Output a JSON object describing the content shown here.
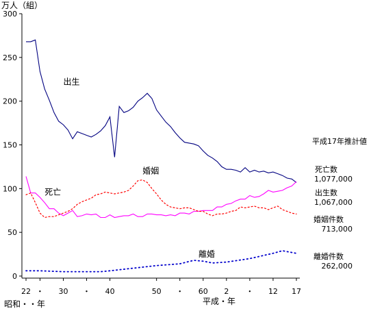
{
  "chart_data": {
    "type": "line",
    "unit_label": "万人（組）",
    "era_label": "昭和・・年",
    "heisei_label": "平成・年",
    "yticks": [
      0,
      50,
      100,
      150,
      200,
      250,
      300
    ],
    "ylim": [
      0,
      300
    ],
    "xlim": [
      1947,
      2005
    ],
    "xticks": [
      {
        "year": 1947,
        "label": "22"
      },
      {
        "year": 1950,
        "label": "・"
      },
      {
        "year": 1955,
        "label": "30"
      },
      {
        "year": 1960,
        "label": "・"
      },
      {
        "year": 1965,
        "label": "40"
      },
      {
        "year": 1975,
        "label": "50"
      },
      {
        "year": 1980,
        "label": "・"
      },
      {
        "year": 1985,
        "label": "60"
      },
      {
        "year": 1990,
        "label": "2"
      },
      {
        "year": 1995,
        "label": "・"
      },
      {
        "year": 2000,
        "label": "12"
      },
      {
        "year": 2005,
        "label": "17"
      }
    ],
    "series": [
      {
        "name": "出生",
        "color": "#000080",
        "style": "solid",
        "points": [
          [
            1947,
            268
          ],
          [
            1948,
            268
          ],
          [
            1949,
            270
          ],
          [
            1950,
            234
          ],
          [
            1951,
            214
          ],
          [
            1952,
            201
          ],
          [
            1953,
            187
          ],
          [
            1954,
            177
          ],
          [
            1955,
            173
          ],
          [
            1956,
            167
          ],
          [
            1957,
            157
          ],
          [
            1958,
            165
          ],
          [
            1959,
            163
          ],
          [
            1960,
            161
          ],
          [
            1961,
            159
          ],
          [
            1962,
            162
          ],
          [
            1963,
            166
          ],
          [
            1964,
            172
          ],
          [
            1965,
            182
          ],
          [
            1966,
            136
          ],
          [
            1967,
            194
          ],
          [
            1968,
            187
          ],
          [
            1969,
            189
          ],
          [
            1970,
            193
          ],
          [
            1971,
            200
          ],
          [
            1972,
            204
          ],
          [
            1973,
            209
          ],
          [
            1974,
            203
          ],
          [
            1975,
            190
          ],
          [
            1976,
            183
          ],
          [
            1977,
            176
          ],
          [
            1978,
            171
          ],
          [
            1979,
            164
          ],
          [
            1980,
            158
          ],
          [
            1981,
            153
          ],
          [
            1982,
            152
          ],
          [
            1983,
            151
          ],
          [
            1984,
            149
          ],
          [
            1985,
            143
          ],
          [
            1986,
            138
          ],
          [
            1987,
            135
          ],
          [
            1988,
            131
          ],
          [
            1989,
            125
          ],
          [
            1990,
            122
          ],
          [
            1991,
            122
          ],
          [
            1992,
            121
          ],
          [
            1993,
            119
          ],
          [
            1994,
            124
          ],
          [
            1995,
            119
          ],
          [
            1996,
            121
          ],
          [
            1997,
            119
          ],
          [
            1998,
            120
          ],
          [
            1999,
            118
          ],
          [
            2000,
            119
          ],
          [
            2001,
            117
          ],
          [
            2002,
            115
          ],
          [
            2003,
            112
          ],
          [
            2004,
            111
          ],
          [
            2005,
            107
          ]
        ]
      },
      {
        "name": "死亡",
        "color": "#ff00ff",
        "style": "solid",
        "points": [
          [
            1947,
            114
          ],
          [
            1948,
            95
          ],
          [
            1949,
            95
          ],
          [
            1950,
            90
          ],
          [
            1951,
            84
          ],
          [
            1952,
            77
          ],
          [
            1953,
            77
          ],
          [
            1954,
            72
          ],
          [
            1955,
            69
          ],
          [
            1956,
            72
          ],
          [
            1957,
            75
          ],
          [
            1958,
            68
          ],
          [
            1959,
            69
          ],
          [
            1960,
            71
          ],
          [
            1961,
            70
          ],
          [
            1962,
            71
          ],
          [
            1963,
            67
          ],
          [
            1964,
            67
          ],
          [
            1965,
            70
          ],
          [
            1966,
            67
          ],
          [
            1967,
            68
          ],
          [
            1968,
            69
          ],
          [
            1969,
            69
          ],
          [
            1970,
            71
          ],
          [
            1971,
            68
          ],
          [
            1972,
            68
          ],
          [
            1973,
            71
          ],
          [
            1974,
            71
          ],
          [
            1975,
            70
          ],
          [
            1976,
            70
          ],
          [
            1977,
            69
          ],
          [
            1978,
            70
          ],
          [
            1979,
            69
          ],
          [
            1980,
            72
          ],
          [
            1981,
            72
          ],
          [
            1982,
            71
          ],
          [
            1983,
            74
          ],
          [
            1984,
            74
          ],
          [
            1985,
            75
          ],
          [
            1986,
            75
          ],
          [
            1987,
            75
          ],
          [
            1988,
            79
          ],
          [
            1989,
            79
          ],
          [
            1990,
            82
          ],
          [
            1991,
            83
          ],
          [
            1992,
            86
          ],
          [
            1993,
            88
          ],
          [
            1994,
            88
          ],
          [
            1995,
            92
          ],
          [
            1996,
            90
          ],
          [
            1997,
            91
          ],
          [
            1998,
            94
          ],
          [
            1999,
            98
          ],
          [
            2000,
            96
          ],
          [
            2001,
            97
          ],
          [
            2002,
            98
          ],
          [
            2003,
            101
          ],
          [
            2004,
            103
          ],
          [
            2005,
            108
          ]
        ]
      },
      {
        "name": "婚姻",
        "color": "#ff0000",
        "style": "dotted",
        "points": [
          [
            1947,
            93
          ],
          [
            1948,
            95
          ],
          [
            1949,
            84
          ],
          [
            1950,
            72
          ],
          [
            1951,
            67
          ],
          [
            1952,
            68
          ],
          [
            1953,
            68
          ],
          [
            1954,
            70
          ],
          [
            1955,
            72
          ],
          [
            1956,
            74
          ],
          [
            1957,
            77
          ],
          [
            1958,
            82
          ],
          [
            1959,
            85
          ],
          [
            1960,
            87
          ],
          [
            1961,
            89
          ],
          [
            1962,
            93
          ],
          [
            1963,
            94
          ],
          [
            1964,
            96
          ],
          [
            1965,
            95
          ],
          [
            1966,
            94
          ],
          [
            1967,
            95
          ],
          [
            1968,
            96
          ],
          [
            1969,
            98
          ],
          [
            1970,
            103
          ],
          [
            1971,
            109
          ],
          [
            1972,
            110
          ],
          [
            1973,
            107
          ],
          [
            1974,
            100
          ],
          [
            1975,
            94
          ],
          [
            1976,
            87
          ],
          [
            1977,
            82
          ],
          [
            1978,
            79
          ],
          [
            1979,
            78
          ],
          [
            1980,
            77
          ],
          [
            1981,
            78
          ],
          [
            1982,
            78
          ],
          [
            1983,
            76
          ],
          [
            1984,
            74
          ],
          [
            1985,
            74
          ],
          [
            1986,
            71
          ],
          [
            1987,
            69
          ],
          [
            1988,
            71
          ],
          [
            1989,
            71
          ],
          [
            1990,
            72
          ],
          [
            1991,
            74
          ],
          [
            1992,
            75
          ],
          [
            1993,
            79
          ],
          [
            1994,
            78
          ],
          [
            1995,
            79
          ],
          [
            1996,
            80
          ],
          [
            1997,
            78
          ],
          [
            1998,
            78
          ],
          [
            1999,
            76
          ],
          [
            2000,
            78
          ],
          [
            2001,
            80
          ],
          [
            2002,
            76
          ],
          [
            2003,
            74
          ],
          [
            2004,
            72
          ],
          [
            2005,
            71
          ]
        ]
      },
      {
        "name": "離婚",
        "color": "#0000cc",
        "style": "dotted",
        "points": [
          [
            1947,
            6
          ],
          [
            1950,
            6
          ],
          [
            1955,
            5
          ],
          [
            1960,
            5
          ],
          [
            1963,
            5
          ],
          [
            1965,
            6
          ],
          [
            1970,
            9
          ],
          [
            1975,
            12
          ],
          [
            1980,
            14
          ],
          [
            1983,
            18
          ],
          [
            1985,
            17
          ],
          [
            1987,
            15
          ],
          [
            1990,
            16
          ],
          [
            1995,
            20
          ],
          [
            2000,
            26
          ],
          [
            2002,
            29
          ],
          [
            2003,
            28
          ],
          [
            2005,
            26
          ]
        ]
      }
    ],
    "series_labels": [
      {
        "name": "出生",
        "x": 1955,
        "y": 219
      },
      {
        "name": "死亡",
        "x": 1951,
        "y": 93
      },
      {
        "name": "婚姻",
        "x": 1972,
        "y": 117
      },
      {
        "name": "離婚",
        "x": 1984,
        "y": 22
      }
    ],
    "estimate_title": "平成17年推計値",
    "estimates": [
      {
        "name": "死亡数",
        "value": "1,077,000"
      },
      {
        "name": "出生数",
        "value": "1,067,000"
      },
      {
        "name": "婚姻件数",
        "value": "713,000"
      },
      {
        "name": "離婚件数",
        "value": "262,000"
      }
    ]
  }
}
